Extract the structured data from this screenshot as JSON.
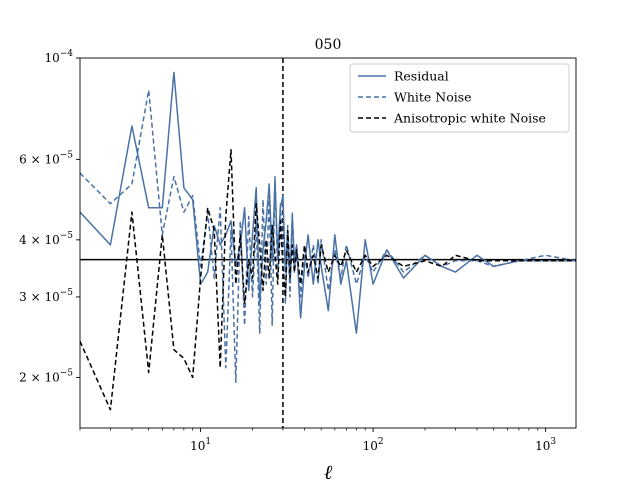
{
  "chart_data": {
    "type": "line",
    "title": "050",
    "xlabel": "ℓ",
    "ylabel": "",
    "xscale": "log",
    "yscale": "log",
    "xlim": [
      2,
      1500
    ],
    "ylim": [
      1.55e-05,
      0.0001
    ],
    "x_ticks": [
      {
        "value": 10,
        "label": "10",
        "exp": "1"
      },
      {
        "value": 100,
        "label": "10",
        "exp": "2"
      },
      {
        "value": 1000,
        "label": "10",
        "exp": "3"
      }
    ],
    "y_ticks": [
      {
        "value": 2e-05,
        "mant": "2 × 10",
        "exp": "−5"
      },
      {
        "value": 3e-05,
        "mant": "3 × 10",
        "exp": "−5"
      },
      {
        "value": 4e-05,
        "mant": "4 × 10",
        "exp": "−5"
      },
      {
        "value": 6e-05,
        "mant": "6 × 10",
        "exp": "−5"
      }
    ],
    "y_major_label": {
      "value": 0.0001,
      "mant": "10",
      "exp": "−4"
    },
    "hline": 3.62e-05,
    "vline": 30,
    "legend_position": "top-right",
    "series": [
      {
        "name": "Residual",
        "style": "solid",
        "color": "#4a72a6",
        "x": [
          2,
          3,
          4,
          5,
          6,
          7,
          8,
          9,
          10,
          11,
          12,
          13,
          14,
          15,
          16,
          17,
          18,
          19,
          20,
          21,
          22,
          23,
          24,
          25,
          26,
          27,
          28,
          29,
          30,
          31,
          32,
          33,
          34,
          35,
          36,
          38,
          40,
          42,
          45,
          48,
          50,
          55,
          60,
          65,
          70,
          80,
          90,
          100,
          120,
          150,
          200,
          250,
          300,
          400,
          500,
          700,
          1000,
          1500
        ],
        "y": [
          4.6e-05,
          3.9e-05,
          7.1e-05,
          4.7e-05,
          4.7e-05,
          9.3e-05,
          5.2e-05,
          4.9e-05,
          3.2e-05,
          3.4e-05,
          4.3e-05,
          3.9e-05,
          4.1e-05,
          4.4e-05,
          3.5e-05,
          3.9e-05,
          4.7e-05,
          3.1e-05,
          4.1e-05,
          5.2e-05,
          2.9e-05,
          3.8e-05,
          4.4e-05,
          5.3e-05,
          3.6e-05,
          5.4e-05,
          3.7e-05,
          4.7e-05,
          5e-05,
          3.4e-05,
          4.2e-05,
          3.3e-05,
          4.5e-05,
          3.6e-05,
          3.9e-05,
          2.7e-05,
          3.5e-05,
          4.1e-05,
          3.2e-05,
          4e-05,
          3.5e-05,
          2.8e-05,
          4.1e-05,
          3.2e-05,
          3.6e-05,
          2.5e-05,
          4e-05,
          3.2e-05,
          3.8e-05,
          3.3e-05,
          3.7e-05,
          3.5e-05,
          3.4e-05,
          3.7e-05,
          3.5e-05,
          3.6e-05,
          3.6e-05,
          3.6e-05
        ]
      },
      {
        "name": "White Noise",
        "style": "dashed",
        "color": "#4a72a6",
        "x": [
          2,
          3,
          4,
          5,
          6,
          7,
          8,
          9,
          10,
          11,
          12,
          13,
          14,
          15,
          16,
          17,
          18,
          19,
          20,
          21,
          22,
          23,
          24,
          25,
          26,
          27,
          28,
          29,
          30,
          31,
          32,
          33,
          34,
          35,
          36,
          38,
          40,
          42,
          45,
          48,
          50,
          55,
          60,
          65,
          70,
          80,
          90,
          100,
          120,
          150,
          200,
          250,
          300,
          400,
          500,
          700,
          1000,
          1500
        ],
        "y": [
          5.6e-05,
          4.8e-05,
          5.3e-05,
          8.5e-05,
          4.1e-05,
          5.5e-05,
          4.6e-05,
          5e-05,
          3.5e-05,
          4.6e-05,
          3.3e-05,
          4.7e-05,
          2.1e-05,
          4.2e-05,
          1.95e-05,
          4.4e-05,
          2.6e-05,
          4.5e-05,
          3e-05,
          4.4e-05,
          2.5e-05,
          4.9e-05,
          3.2e-05,
          5e-05,
          2.6e-05,
          5.5e-05,
          3.3e-05,
          4.8e-05,
          3.7e-05,
          2.9e-05,
          4.3e-05,
          3e-05,
          4.6e-05,
          3.4e-05,
          3.9e-05,
          3e-05,
          3.8e-05,
          3.3e-05,
          3.9e-05,
          3.2e-05,
          4e-05,
          3.1e-05,
          3.8e-05,
          3.3e-05,
          3.9e-05,
          3.2e-05,
          3.7e-05,
          3.4e-05,
          3.8e-05,
          3.4e-05,
          3.7e-05,
          3.5e-05,
          3.6e-05,
          3.6e-05,
          3.5e-05,
          3.6e-05,
          3.7e-05,
          3.6e-05
        ]
      },
      {
        "name": "Anisotropic white Noise",
        "style": "dashed",
        "color": "#000000",
        "x": [
          2,
          3,
          4,
          5,
          6,
          7,
          8,
          9,
          10,
          11,
          12,
          13,
          14,
          15,
          16,
          17,
          18,
          19,
          20,
          21,
          22,
          23,
          24,
          25,
          26,
          27,
          28,
          29,
          30,
          31,
          32,
          33,
          34,
          35,
          36,
          38,
          40,
          42,
          45,
          48,
          50,
          55,
          60,
          65,
          70,
          80,
          90,
          100,
          120,
          150,
          200,
          250,
          300,
          400,
          500,
          700,
          1000,
          1500
        ],
        "y": [
          2.4e-05,
          1.7e-05,
          4.6e-05,
          2.05e-05,
          4.1e-05,
          2.3e-05,
          2.2e-05,
          2e-05,
          3.3e-05,
          4.7e-05,
          4.2e-05,
          2.1e-05,
          4.5e-05,
          6.3e-05,
          3.2e-05,
          4.1e-05,
          2.9e-05,
          3.6e-05,
          3.3e-05,
          4.8e-05,
          3.9e-05,
          3.1e-05,
          4e-05,
          3.3e-05,
          4.3e-05,
          3.7e-05,
          3.2e-05,
          4.4e-05,
          3.5e-05,
          3e-05,
          4.2e-05,
          3.3e-05,
          3.9e-05,
          3.4e-05,
          3.8e-05,
          3.2e-05,
          3.9e-05,
          3.4e-05,
          3.7e-05,
          3.3e-05,
          3.9e-05,
          3.4e-05,
          3.7e-05,
          3.5e-05,
          3.8e-05,
          3.4e-05,
          3.7e-05,
          3.5e-05,
          3.7e-05,
          3.5e-05,
          3.6e-05,
          3.5e-05,
          3.7e-05,
          3.6e-05,
          3.6e-05,
          3.6e-05,
          3.6e-05,
          3.6e-05
        ]
      }
    ]
  }
}
